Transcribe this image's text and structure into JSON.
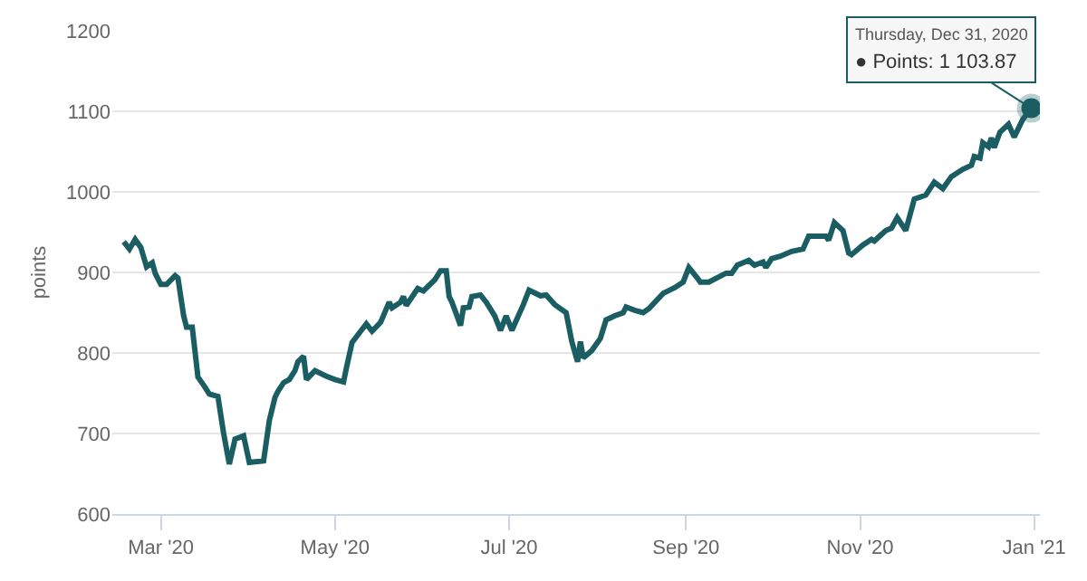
{
  "chart_data": {
    "type": "line",
    "ylabel": "points",
    "x": [
      "2020-02-17",
      "2020-02-19",
      "2020-02-21",
      "2020-02-23",
      "2020-02-25",
      "2020-02-27",
      "2020-02-28",
      "2020-03-01",
      "2020-03-03",
      "2020-03-06",
      "2020-03-07",
      "2020-03-09",
      "2020-03-10",
      "2020-03-12",
      "2020-03-14",
      "2020-03-16",
      "2020-03-18",
      "2020-03-21",
      "2020-03-23",
      "2020-03-25",
      "2020-03-27",
      "2020-03-30",
      "2020-04-01",
      "2020-04-06",
      "2020-04-08",
      "2020-04-10",
      "2020-04-11",
      "2020-04-13",
      "2020-04-15",
      "2020-04-17",
      "2020-04-18",
      "2020-04-20",
      "2020-04-21",
      "2020-04-24",
      "2020-04-28",
      "2020-05-01",
      "2020-05-04",
      "2020-05-05",
      "2020-05-07",
      "2020-05-10",
      "2020-05-12",
      "2020-05-14",
      "2020-05-17",
      "2020-05-20",
      "2020-05-21",
      "2020-05-24",
      "2020-05-25",
      "2020-05-26",
      "2020-05-30",
      "2020-06-01",
      "2020-06-05",
      "2020-06-07",
      "2020-06-09",
      "2020-06-10",
      "2020-06-11",
      "2020-06-14",
      "2020-06-15",
      "2020-06-17",
      "2020-06-18",
      "2020-06-21",
      "2020-06-23",
      "2020-06-26",
      "2020-06-28",
      "2020-06-30",
      "2020-07-02",
      "2020-07-06",
      "2020-07-08",
      "2020-07-12",
      "2020-07-14",
      "2020-07-17",
      "2020-07-21",
      "2020-07-23",
      "2020-07-25",
      "2020-07-26",
      "2020-07-27",
      "2020-07-30",
      "2020-08-02",
      "2020-08-04",
      "2020-08-07",
      "2020-08-10",
      "2020-08-11",
      "2020-08-14",
      "2020-08-17",
      "2020-08-19",
      "2020-08-24",
      "2020-08-28",
      "2020-08-31",
      "2020-09-02",
      "2020-09-05",
      "2020-09-06",
      "2020-09-09",
      "2020-09-15",
      "2020-09-17",
      "2020-09-19",
      "2020-09-23",
      "2020-09-25",
      "2020-09-28",
      "2020-09-29",
      "2020-10-01",
      "2020-10-04",
      "2020-10-08",
      "2020-10-12",
      "2020-10-14",
      "2020-10-20",
      "2020-10-21",
      "2020-10-23",
      "2020-10-26",
      "2020-10-28",
      "2020-10-29",
      "2020-11-02",
      "2020-11-05",
      "2020-11-06",
      "2020-11-10",
      "2020-11-12",
      "2020-11-14",
      "2020-11-17",
      "2020-11-20",
      "2020-11-24",
      "2020-11-27",
      "2020-11-30",
      "2020-12-03",
      "2020-12-07",
      "2020-12-10",
      "2020-12-11",
      "2020-12-13",
      "2020-12-14",
      "2020-12-16",
      "2020-12-17",
      "2020-12-18",
      "2020-12-20",
      "2020-12-23",
      "2020-12-25",
      "2020-12-28",
      "2020-12-31"
    ],
    "series": [
      {
        "color": "#1a5e63",
        "values": [
          938,
          929,
          941,
          931,
          907,
          912,
          899,
          885,
          885,
          896,
          893,
          846,
          832,
          832,
          770,
          760,
          749,
          746,
          700,
          662,
          693,
          697,
          664,
          666,
          716,
          745,
          752,
          763,
          767,
          778,
          789,
          796,
          767,
          778,
          771,
          767,
          764,
          781,
          813,
          827,
          836,
          827,
          838,
          863,
          856,
          863,
          870,
          859,
          880,
          877,
          891,
          902,
          902,
          870,
          863,
          834,
          856,
          857,
          870,
          872,
          863,
          846,
          828,
          846,
          828,
          860,
          878,
          871,
          872,
          860,
          850,
          814,
          789,
          814,
          794,
          803,
          818,
          841,
          846,
          850,
          857,
          853,
          850,
          855,
          874,
          881,
          888,
          906,
          893,
          888,
          888,
          899,
          899,
          909,
          915,
          909,
          913,
          906,
          917,
          920,
          926,
          929,
          945,
          945,
          940,
          962,
          952,
          924,
          922,
          934,
          941,
          939,
          952,
          955,
          968,
          952,
          991,
          996,
          1012,
          1004,
          1019,
          1028,
          1033,
          1044,
          1042,
          1061,
          1056,
          1067,
          1055,
          1074,
          1084,
          1068,
          1090,
          1103.87
        ]
      }
    ],
    "xlim": [
      "2020-02-13",
      "2021-01-03"
    ],
    "xticks": [
      {
        "value": "2020-03-01",
        "label": "Mar '20"
      },
      {
        "value": "2020-05-01",
        "label": "May '20"
      },
      {
        "value": "2020-07-01",
        "label": "Jul '20"
      },
      {
        "value": "2020-09-01",
        "label": "Sep '20"
      },
      {
        "value": "2020-11-01",
        "label": "Nov '20"
      },
      {
        "value": "2021-01-01",
        "label": "Jan '21"
      }
    ],
    "ylim": [
      600,
      1200
    ],
    "yticks": [
      600,
      700,
      800,
      900,
      1000,
      1100,
      1200
    ],
    "grid": "y",
    "marker": "none",
    "line_style": "solid",
    "annotations": [
      {
        "text": "Thursday, Dec 31, 2020\n● Points: 1 103.87",
        "x": "2020-12-31",
        "y": 1103.87
      }
    ]
  }
}
